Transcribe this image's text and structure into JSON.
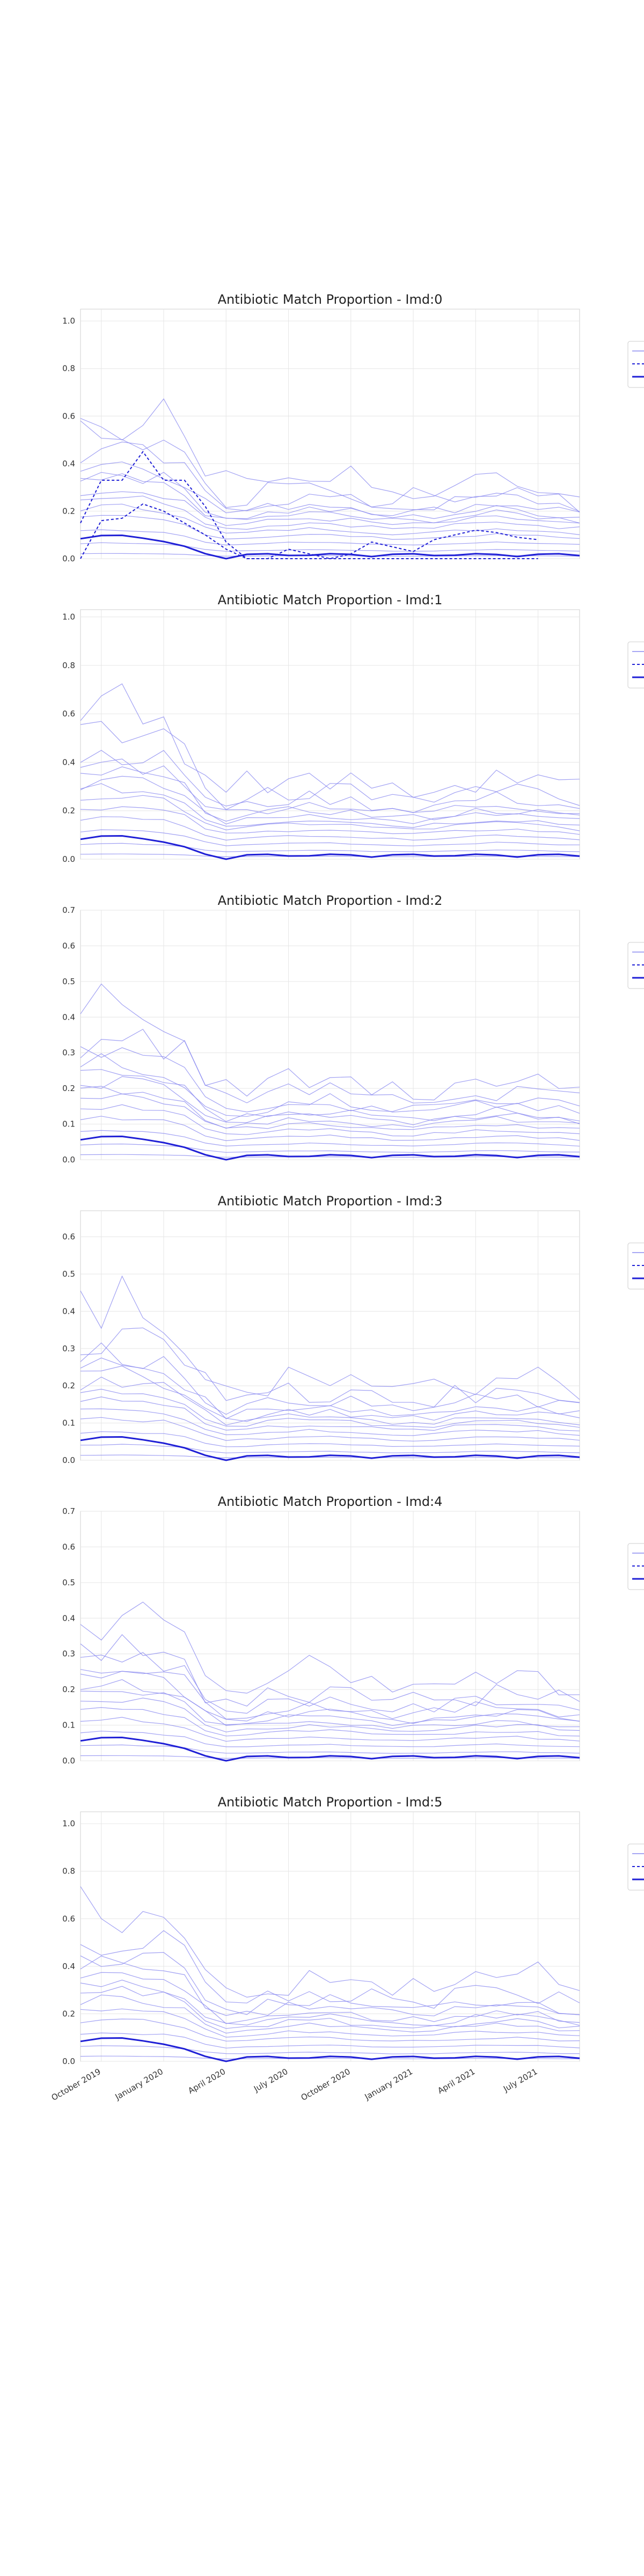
{
  "chart_data": [
    {
      "type": "line",
      "title": "Antibiotic Match Proportion - Imd:0",
      "ylim": [
        0,
        1.05
      ],
      "yticks": [
        0.0,
        0.2,
        0.4,
        0.6,
        0.8,
        1.0
      ],
      "dashed_series": [
        [
          0.15,
          0.33,
          0.33,
          0.45,
          0.33,
          0.33,
          0.22,
          0.07,
          0.0,
          0.0,
          0.0,
          0.0,
          0.0,
          0.0,
          0.0,
          0.0,
          0.0,
          0.0,
          0.0,
          0.0,
          0.0,
          0.0,
          0.0
        ],
        [
          0.0,
          0.16,
          0.17,
          0.23,
          0.2,
          0.15,
          0.1,
          0.04,
          0.0,
          0.0,
          0.04,
          0.02,
          0.0,
          0.02,
          0.07,
          0.05,
          0.03,
          0.08,
          0.1,
          0.12,
          0.11,
          0.09,
          0.08
        ]
      ]
    },
    {
      "type": "line",
      "title": "Antibiotic Match Proportion - Imd:1",
      "ylim": [
        0,
        1.03
      ],
      "yticks": [
        0.0,
        0.2,
        0.4,
        0.6,
        0.8,
        1.0
      ]
    },
    {
      "type": "line",
      "title": "Antibiotic Match Proportion - Imd:2",
      "ylim": [
        0,
        0.7
      ],
      "yticks": [
        0.0,
        0.1,
        0.2,
        0.3,
        0.4,
        0.5,
        0.6,
        0.7
      ]
    },
    {
      "type": "line",
      "title": "Antibiotic Match Proportion - Imd:3",
      "ylim": [
        0,
        0.67
      ],
      "yticks": [
        0.0,
        0.1,
        0.2,
        0.3,
        0.4,
        0.5,
        0.6
      ]
    },
    {
      "type": "line",
      "title": "Antibiotic Match Proportion - Imd:4",
      "ylim": [
        0,
        0.7
      ],
      "yticks": [
        0.0,
        0.1,
        0.2,
        0.3,
        0.4,
        0.5,
        0.6,
        0.7
      ]
    },
    {
      "type": "line",
      "title": "Antibiotic Match Proportion - Imd:5",
      "ylim": [
        0,
        1.05
      ],
      "yticks": [
        0.0,
        0.2,
        0.4,
        0.6,
        0.8,
        1.0
      ]
    }
  ],
  "x_dates": [
    "2019-09",
    "2019-10",
    "2019-11",
    "2019-12",
    "2020-01",
    "2020-02",
    "2020-03",
    "2020-04",
    "2020-05",
    "2020-06",
    "2020-07",
    "2020-08",
    "2020-09",
    "2020-10",
    "2020-11",
    "2020-12",
    "2021-01",
    "2021-02",
    "2021-03",
    "2021-04",
    "2021-05",
    "2021-06",
    "2021-07",
    "2021-08",
    "2021-09"
  ],
  "x_tick_labels": [
    "October 2019",
    "January 2020",
    "April 2020",
    "July 2020",
    "October 2020",
    "January 2021",
    "April 2021",
    "July 2021"
  ],
  "colors": {
    "line": "#1f1fd6",
    "light": "#8a8af0",
    "grid": "#e6e6e6",
    "frame": "#cfcfcf",
    "text": "#333333"
  }
}
